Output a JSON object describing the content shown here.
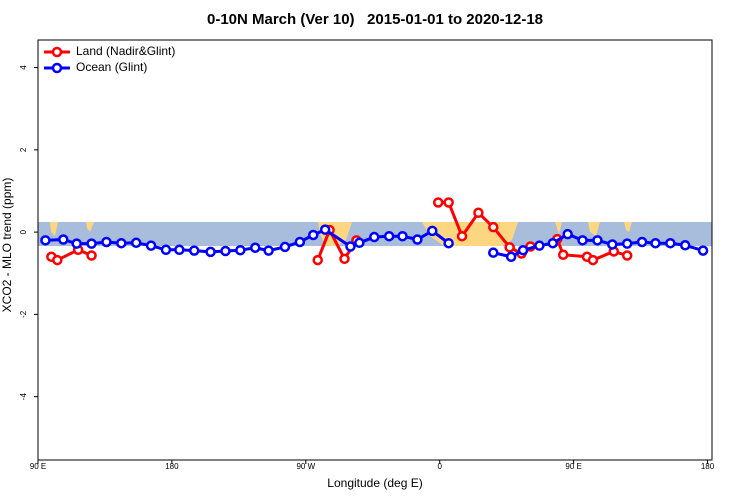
{
  "chart_data": {
    "type": "line",
    "title": "0-10N March (Ver 10)   2015-01-01 to 2020-12-18",
    "xlabel": "Longitude (deg E)",
    "ylabel": "XCO2 - MLO trend (ppm)",
    "xlim": [
      90,
      543
    ],
    "ylim": [
      -5.54,
      4.67
    ],
    "xticks": [
      {
        "value": 90,
        "label": "90 E"
      },
      {
        "value": 180,
        "label": "180"
      },
      {
        "value": 270,
        "label": "90 W"
      },
      {
        "value": 360,
        "label": "0"
      },
      {
        "value": 450,
        "label": "90 E"
      },
      {
        "value": 540,
        "label": "180"
      }
    ],
    "yticks": [
      -4,
      -2,
      0,
      2,
      4
    ],
    "legend": "top-left",
    "series": [
      {
        "name": "Land (Nadir&Glint)",
        "color": "#ff0000",
        "x": [
          99,
          103,
          117,
          126,
          null,
          278,
          286,
          296,
          304,
          null,
          359,
          366,
          375,
          386,
          396,
          407,
          415,
          421,
          null,
          439,
          443,
          459,
          463,
          477,
          486
        ],
        "values": [
          -0.6,
          -0.68,
          -0.43,
          -0.57,
          null,
          -0.68,
          0.05,
          -0.65,
          -0.2,
          null,
          0.72,
          0.72,
          -0.1,
          0.47,
          0.12,
          -0.37,
          -0.52,
          -0.35,
          null,
          -0.17,
          -0.55,
          -0.6,
          -0.68,
          -0.47,
          -0.57
        ]
      },
      {
        "name": "Ocean (Glint)",
        "color": "#0000ff",
        "x": [
          95,
          107,
          116,
          126,
          136,
          146,
          156,
          166,
          176,
          185,
          195,
          206,
          216,
          226,
          236,
          245,
          256,
          266,
          275,
          283,
          300,
          306,
          316,
          326,
          335,
          345,
          355,
          366,
          null,
          396,
          408,
          416,
          427,
          436,
          446,
          456,
          466,
          476,
          486,
          496,
          505,
          515,
          525,
          537
        ],
        "values": [
          -0.2,
          -0.18,
          -0.28,
          -0.28,
          -0.24,
          -0.27,
          -0.26,
          -0.33,
          -0.43,
          -0.43,
          -0.45,
          -0.48,
          -0.46,
          -0.44,
          -0.38,
          -0.45,
          -0.36,
          -0.24,
          -0.07,
          0.06,
          -0.35,
          -0.26,
          -0.12,
          -0.1,
          -0.1,
          -0.18,
          0.03,
          -0.27,
          null,
          -0.5,
          -0.6,
          -0.44,
          -0.33,
          -0.27,
          -0.05,
          -0.2,
          -0.2,
          -0.3,
          -0.28,
          -0.24,
          -0.27,
          -0.27,
          -0.32,
          -0.45
        ]
      }
    ]
  }
}
